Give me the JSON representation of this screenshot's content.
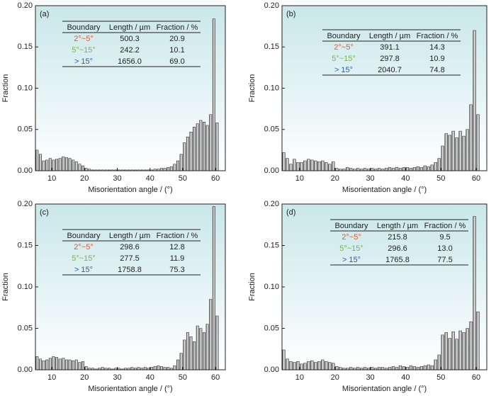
{
  "chart_data": [
    {
      "type": "histogram",
      "label": "(a)",
      "xlabel": "Misorientation angle / (°)",
      "ylabel": "Fraction",
      "bins": [
        5,
        6,
        7,
        8,
        9,
        10,
        11,
        12,
        13,
        14,
        15,
        16,
        17,
        18,
        19,
        20,
        21,
        22,
        23,
        24,
        25,
        26,
        27,
        28,
        29,
        30,
        31,
        32,
        33,
        34,
        35,
        36,
        37,
        38,
        39,
        40,
        41,
        42,
        43,
        44,
        45,
        46,
        47,
        48,
        49,
        50,
        51,
        52,
        53,
        54,
        55,
        56,
        57,
        58,
        59,
        60,
        61
      ],
      "counts": [
        0.025,
        0.02,
        0.012,
        0.013,
        0.015,
        0.013,
        0.014,
        0.015,
        0.017,
        0.016,
        0.015,
        0.013,
        0.011,
        0.008,
        0.006,
        0.003,
        0.002,
        0.001,
        0.001,
        0.001,
        0.001,
        0.001,
        0.001,
        0.001,
        0.001,
        0.001,
        0.001,
        0.001,
        0.001,
        0.001,
        0.001,
        0.001,
        0.001,
        0.001,
        0.001,
        0.001,
        0.002,
        0.002,
        0.003,
        0.003,
        0.004,
        0.005,
        0.008,
        0.012,
        0.02,
        0.034,
        0.041,
        0.047,
        0.053,
        0.057,
        0.061,
        0.059,
        0.055,
        0.068,
        0.184,
        0.058
      ],
      "color": "#b0b0b0",
      "xlim": [
        5,
        63
      ],
      "xticks": [
        10,
        20,
        30,
        40,
        50,
        60
      ],
      "ylim": [
        0,
        0.2
      ],
      "yticks": [
        {
          "value": 0,
          "label": "0.00"
        },
        {
          "value": 0.05,
          "label": "0.05"
        },
        {
          "value": 0.1,
          "label": "0.10"
        },
        {
          "value": 0.15,
          "label": "0.15"
        },
        {
          "value": 0.2,
          "label": "0.20"
        }
      ],
      "table": {
        "columns": [
          "Boundary",
          "Length / µm",
          "Fraction / %"
        ],
        "row_colors": [
          "#e8572a",
          "#7ab648",
          "#2a5db0"
        ],
        "rows": [
          [
            "2°~5°",
            "500.3",
            "20.9"
          ],
          [
            "5°~15°",
            "242.2",
            "10.1"
          ],
          [
            "> 15°",
            "1656.0",
            "69.0"
          ]
        ]
      }
    },
    {
      "type": "histogram",
      "label": "(b)",
      "xlabel": "Misorientation angle / (°)",
      "ylabel": "Fraction",
      "bins": [
        5,
        6,
        7,
        8,
        9,
        10,
        11,
        12,
        13,
        14,
        15,
        16,
        17,
        18,
        19,
        20,
        21,
        22,
        23,
        24,
        25,
        26,
        27,
        28,
        29,
        30,
        31,
        32,
        33,
        34,
        35,
        36,
        37,
        38,
        39,
        40,
        41,
        42,
        43,
        44,
        45,
        46,
        47,
        48,
        49,
        50,
        51,
        52,
        53,
        54,
        55,
        56,
        57,
        58,
        59,
        60,
        61
      ],
      "counts": [
        0.022,
        0.015,
        0.008,
        0.014,
        0.01,
        0.01,
        0.012,
        0.014,
        0.013,
        0.012,
        0.011,
        0.012,
        0.01,
        0.008,
        0.011,
        0.003,
        0.002,
        0.002,
        0.004,
        0.003,
        0.002,
        0.003,
        0.002,
        0.003,
        0.002,
        0.003,
        0.002,
        0.003,
        0.002,
        0.003,
        0.004,
        0.003,
        0.004,
        0.003,
        0.004,
        0.004,
        0.003,
        0.004,
        0.005,
        0.004,
        0.006,
        0.005,
        0.007,
        0.01,
        0.015,
        0.03,
        0.045,
        0.043,
        0.048,
        0.04,
        0.048,
        0.042,
        0.05,
        0.08,
        0.17,
        0.068
      ],
      "color": "#b0b0b0",
      "xlim": [
        5,
        63
      ],
      "xticks": [
        10,
        20,
        30,
        40,
        50,
        60
      ],
      "ylim": [
        0,
        0.2
      ],
      "yticks": [
        {
          "value": 0,
          "label": "0.00"
        },
        {
          "value": 0.05,
          "label": "0.05"
        },
        {
          "value": 0.1,
          "label": "0.10"
        },
        {
          "value": 0.15,
          "label": "0.15"
        },
        {
          "value": 0.2,
          "label": "0.20"
        }
      ],
      "table": {
        "columns": [
          "Boundary",
          "Length / µm",
          "Fraction / %"
        ],
        "row_colors": [
          "#e8572a",
          "#7ab648",
          "#2a5db0"
        ],
        "rows": [
          [
            "2°~5°",
            "391.1",
            "14.3"
          ],
          [
            "5°~15°",
            "297.8",
            "10.9"
          ],
          [
            "> 15°",
            "2040.7",
            "74.8"
          ]
        ]
      }
    },
    {
      "type": "histogram",
      "label": "(c)",
      "xlabel": "Misorientation angle / (°)",
      "ylabel": "Fraction",
      "bins": [
        5,
        6,
        7,
        8,
        9,
        10,
        11,
        12,
        13,
        14,
        15,
        16,
        17,
        18,
        19,
        20,
        21,
        22,
        23,
        24,
        25,
        26,
        27,
        28,
        29,
        30,
        31,
        32,
        33,
        34,
        35,
        36,
        37,
        38,
        39,
        40,
        41,
        42,
        43,
        44,
        45,
        46,
        47,
        48,
        49,
        50,
        51,
        52,
        53,
        54,
        55,
        56,
        57,
        58,
        59,
        60,
        61
      ],
      "counts": [
        0.016,
        0.013,
        0.011,
        0.012,
        0.014,
        0.016,
        0.015,
        0.013,
        0.014,
        0.012,
        0.012,
        0.011,
        0.012,
        0.009,
        0.01,
        0.004,
        0.002,
        0.002,
        0.001,
        0.002,
        0.003,
        0.002,
        0.002,
        0.001,
        0.002,
        0.002,
        0.001,
        0.002,
        0.002,
        0.003,
        0.002,
        0.003,
        0.002,
        0.003,
        0.002,
        0.003,
        0.004,
        0.005,
        0.004,
        0.003,
        0.003,
        0.002,
        0.005,
        0.012,
        0.02,
        0.036,
        0.045,
        0.04,
        0.034,
        0.053,
        0.05,
        0.045,
        0.055,
        0.085,
        0.197,
        0.065
      ],
      "color": "#b0b0b0",
      "xlim": [
        5,
        63
      ],
      "xticks": [
        10,
        20,
        30,
        40,
        50,
        60
      ],
      "ylim": [
        0,
        0.2
      ],
      "yticks": [
        {
          "value": 0,
          "label": "0.00"
        },
        {
          "value": 0.05,
          "label": "0.05"
        },
        {
          "value": 0.1,
          "label": "0.10"
        },
        {
          "value": 0.15,
          "label": "0.15"
        },
        {
          "value": 0.2,
          "label": "0.20"
        }
      ],
      "table": {
        "columns": [
          "Boundary",
          "Length / µm",
          "Fraction / %"
        ],
        "row_colors": [
          "#e8572a",
          "#7ab648",
          "#2a5db0"
        ],
        "rows": [
          [
            "2°~5°",
            "298.6",
            "12.8"
          ],
          [
            "5°~15°",
            "277.5",
            "11.9"
          ],
          [
            "> 15°",
            "1758.8",
            "75.3"
          ]
        ]
      }
    },
    {
      "type": "histogram",
      "label": "(d)",
      "xlabel": "Misorientation angle / (°)",
      "ylabel": "Fraction",
      "bins": [
        5,
        6,
        7,
        8,
        9,
        10,
        11,
        12,
        13,
        14,
        15,
        16,
        17,
        18,
        19,
        20,
        21,
        22,
        23,
        24,
        25,
        26,
        27,
        28,
        29,
        30,
        31,
        32,
        33,
        34,
        35,
        36,
        37,
        38,
        39,
        40,
        41,
        42,
        43,
        44,
        45,
        46,
        47,
        48,
        49,
        50,
        51,
        52,
        53,
        54,
        55,
        56,
        57,
        58,
        59,
        60,
        61
      ],
      "counts": [
        0.024,
        0.013,
        0.01,
        0.009,
        0.01,
        0.007,
        0.008,
        0.01,
        0.011,
        0.009,
        0.01,
        0.012,
        0.01,
        0.009,
        0.008,
        0.004,
        0.003,
        0.002,
        0.002,
        0.003,
        0.002,
        0.003,
        0.002,
        0.003,
        0.002,
        0.003,
        0.002,
        0.003,
        0.003,
        0.002,
        0.003,
        0.004,
        0.003,
        0.005,
        0.004,
        0.003,
        0.005,
        0.004,
        0.003,
        0.004,
        0.005,
        0.006,
        0.005,
        0.012,
        0.018,
        0.042,
        0.045,
        0.038,
        0.046,
        0.037,
        0.047,
        0.045,
        0.05,
        0.058,
        0.185,
        0.07
      ],
      "color": "#b0b0b0",
      "xlim": [
        5,
        63
      ],
      "xticks": [
        10,
        20,
        30,
        40,
        50,
        60
      ],
      "ylim": [
        0,
        0.2
      ],
      "yticks": [
        {
          "value": 0,
          "label": "0.00"
        },
        {
          "value": 0.05,
          "label": "0.05"
        },
        {
          "value": 0.1,
          "label": "0.10"
        },
        {
          "value": 0.15,
          "label": "0.15"
        },
        {
          "value": 0.2,
          "label": "0.20"
        }
      ],
      "table": {
        "columns": [
          "Boundary",
          "Length / µm",
          "Fraction / %"
        ],
        "row_colors": [
          "#e8572a",
          "#7ab648",
          "#2a5db0"
        ],
        "rows": [
          [
            "2°~5°",
            "215.8",
            "9.5"
          ],
          [
            "5°~15°",
            "296.6",
            "13.0"
          ],
          [
            "> 15°",
            "1765.8",
            "77.5"
          ]
        ]
      }
    }
  ]
}
